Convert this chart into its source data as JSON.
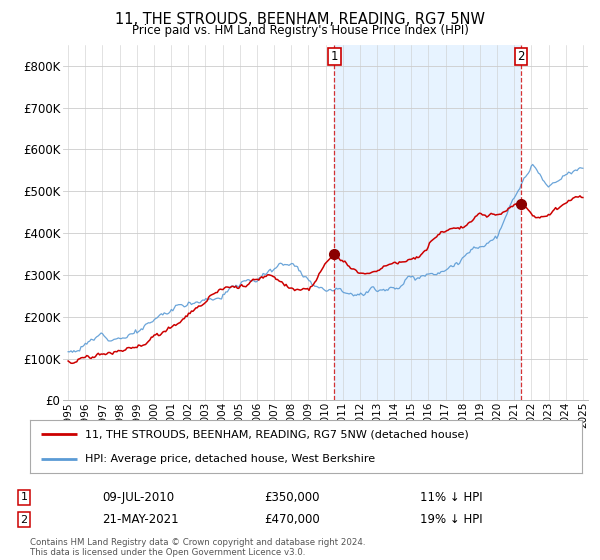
{
  "title": "11, THE STROUDS, BEENHAM, READING, RG7 5NW",
  "subtitle": "Price paid vs. HM Land Registry's House Price Index (HPI)",
  "ylim": [
    0,
    850000
  ],
  "yticks": [
    0,
    100000,
    200000,
    300000,
    400000,
    500000,
    600000,
    700000,
    800000
  ],
  "ytick_labels": [
    "£0",
    "£100K",
    "£200K",
    "£300K",
    "£400K",
    "£500K",
    "£600K",
    "£700K",
    "£800K"
  ],
  "hpi_color": "#5b9bd5",
  "price_color": "#cc0000",
  "shade_color": "#ddeeff",
  "marker_color": "#8b0000",
  "legend_label_price": "11, THE STROUDS, BEENHAM, READING, RG7 5NW (detached house)",
  "legend_label_hpi": "HPI: Average price, detached house, West Berkshire",
  "annotation1_date": "09-JUL-2010",
  "annotation1_price": "£350,000",
  "annotation1_pct": "11% ↓ HPI",
  "annotation2_date": "21-MAY-2021",
  "annotation2_price": "£470,000",
  "annotation2_pct": "19% ↓ HPI",
  "footnote": "Contains HM Land Registry data © Crown copyright and database right 2024.\nThis data is licensed under the Open Government Licence v3.0.",
  "vline1_x": 2010.52,
  "vline2_x": 2021.38,
  "sale1_x": 2010.52,
  "sale1_y": 350000,
  "sale2_x": 2021.38,
  "sale2_y": 470000,
  "background_color": "#ffffff",
  "grid_color": "#cccccc",
  "xlim_left": 1994.7,
  "xlim_right": 2025.3
}
